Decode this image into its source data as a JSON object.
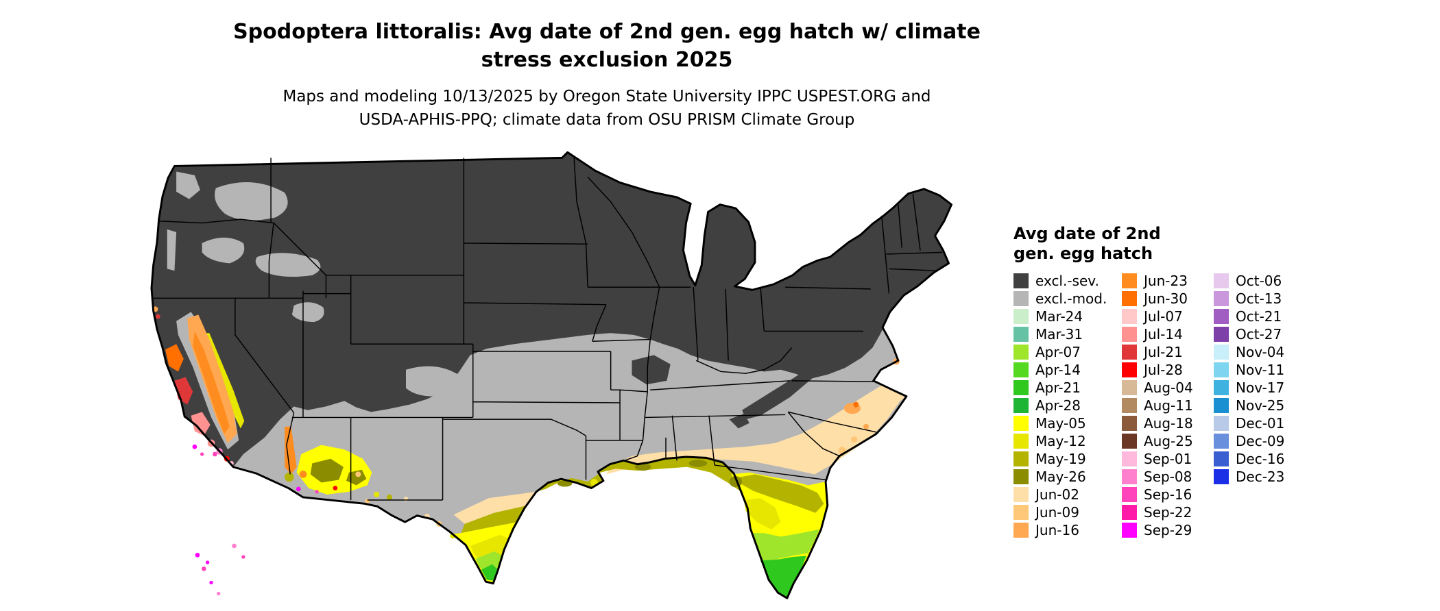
{
  "header": {
    "title_line1": "Spodoptera littoralis: Avg date of 2nd gen. egg hatch w/ climate",
    "title_line2": "stress exclusion 2025",
    "subtitle_line1": "Maps and modeling 10/13/2025 by Oregon State University IPPC USPEST.ORG and",
    "subtitle_line2": "USDA-APHIS-PPQ; climate data from OSU PRISM Climate Group"
  },
  "legend": {
    "title_line1": "Avg date of 2nd",
    "title_line2": "gen. egg hatch",
    "columns": [
      {
        "entries": [
          {
            "label": "excl.-sev.",
            "color": "#404040"
          },
          {
            "label": "excl.-mod.",
            "color": "#b5b5b5"
          },
          {
            "label": "Mar-24",
            "color": "#c9eec9"
          },
          {
            "label": "Mar-31",
            "color": "#66c2a4"
          },
          {
            "label": "Apr-07",
            "color": "#9fe52c"
          },
          {
            "label": "Apr-14",
            "color": "#55d920"
          },
          {
            "label": "Apr-21",
            "color": "#2fc81e"
          },
          {
            "label": "Apr-28",
            "color": "#1eb434"
          },
          {
            "label": "May-05",
            "color": "#ffff00"
          },
          {
            "label": "May-12",
            "color": "#e6e600"
          },
          {
            "label": "May-19",
            "color": "#b4b400"
          },
          {
            "label": "May-26",
            "color": "#8c8c00"
          },
          {
            "label": "Jun-02",
            "color": "#ffdfa8"
          },
          {
            "label": "Jun-09",
            "color": "#ffc878"
          },
          {
            "label": "Jun-16",
            "color": "#ffa851"
          }
        ]
      },
      {
        "entries": [
          {
            "label": "Jun-23",
            "color": "#ff8c1e"
          },
          {
            "label": "Jun-30",
            "color": "#ff7000"
          },
          {
            "label": "Jul-07",
            "color": "#ffc9c9"
          },
          {
            "label": "Jul-14",
            "color": "#ff9191"
          },
          {
            "label": "Jul-21",
            "color": "#e03838"
          },
          {
            "label": "Jul-28",
            "color": "#ff0000"
          },
          {
            "label": "Aug-04",
            "color": "#d7b897"
          },
          {
            "label": "Aug-11",
            "color": "#b28a62"
          },
          {
            "label": "Aug-18",
            "color": "#8a5a3a"
          },
          {
            "label": "Aug-25",
            "color": "#693723"
          },
          {
            "label": "Sep-01",
            "color": "#ffb9dd"
          },
          {
            "label": "Sep-08",
            "color": "#ff80cc"
          },
          {
            "label": "Sep-16",
            "color": "#ff44bb"
          },
          {
            "label": "Sep-22",
            "color": "#ff1aa8"
          },
          {
            "label": "Sep-29",
            "color": "#ff00ff"
          }
        ]
      },
      {
        "entries": [
          {
            "label": "Oct-06",
            "color": "#e8c9ee"
          },
          {
            "label": "Oct-13",
            "color": "#ca97dd"
          },
          {
            "label": "Oct-21",
            "color": "#a05ec2"
          },
          {
            "label": "Oct-27",
            "color": "#7d3fa8"
          },
          {
            "label": "Nov-04",
            "color": "#c8effa"
          },
          {
            "label": "Nov-11",
            "color": "#7fd4f0"
          },
          {
            "label": "Nov-17",
            "color": "#3fb2e0"
          },
          {
            "label": "Nov-25",
            "color": "#1a8fd1"
          },
          {
            "label": "Dec-01",
            "color": "#b9c9e8"
          },
          {
            "label": "Dec-09",
            "color": "#6a8fdd"
          },
          {
            "label": "Dec-16",
            "color": "#3a5fd1"
          },
          {
            "label": "Dec-23",
            "color": "#1a2fe6"
          }
        ]
      }
    ]
  },
  "map": {
    "colors": {
      "background": "#ffffff",
      "state_border": "#000000"
    }
  }
}
